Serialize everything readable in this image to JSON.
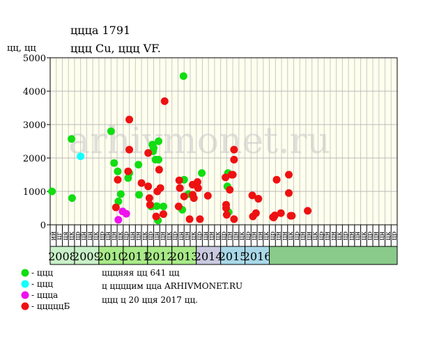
{
  "title": "ццца 1791",
  "subtitle": "ццц Cu, ццц VF.",
  "y_unit": "цц, цц",
  "watermark": "arhivmonet.ru",
  "note_lines": [
    "цццняя цц 641 цц",
    "ц ццццим цца ARHIVMONET.RU",
    "ццц ц 20 цця 2017 цц."
  ],
  "legend": [
    {
      "label": "- ццц",
      "color": "#11dd11"
    },
    {
      "label": "- ццц",
      "color": "#11ffff"
    },
    {
      "label": "- ццца",
      "color": "#ee11ee"
    },
    {
      "label": "- цццццБ",
      "color": "#ee1111"
    }
  ],
  "years": [
    {
      "label": "2008",
      "color": "#c8f0c8"
    },
    {
      "label": "2009",
      "color": "#c8f0c8"
    },
    {
      "label": "2010",
      "color": "#a8ea88"
    },
    {
      "label": "2011",
      "color": "#a8ea88"
    },
    {
      "label": "2012",
      "color": "#a8ea88"
    },
    {
      "label": "2013",
      "color": "#a8ea88"
    },
    {
      "label": "2014",
      "color": "#c8c8e0"
    },
    {
      "label": "2015",
      "color": "#a8d8e8"
    },
    {
      "label": "2016",
      "color": "#a8d8e8"
    }
  ],
  "month_labels": [
    "ий",
    "цг",
    "ця",
    "цк",
    "цр",
    "цн",
    "цн",
    "цк",
    "цр",
    "цн",
    "цн",
    "цк",
    "цр",
    "цн",
    "цн",
    "цк",
    "цр",
    "цн",
    "цн",
    "цк",
    "цр",
    "цн",
    "цн",
    "цк",
    "цр",
    "цн",
    "цн",
    "цк",
    "цр",
    "цн",
    "цн",
    "цк",
    "цр",
    "цн",
    "цн",
    "цк",
    "цр",
    "цн",
    "цн",
    "цк",
    "цр",
    "цн",
    "цн",
    "цк",
    "цр",
    "цн",
    "цн",
    "цк",
    "цр",
    "цн",
    "цн",
    "цк",
    "цр",
    "цн",
    "цн",
    "цк",
    "цр"
  ],
  "chart_data": {
    "type": "scatter",
    "title": "ццца 1791",
    "subtitle": "ццц Cu, ццц VF.",
    "ylabel": "цц, цц",
    "ylim": [
      0,
      5000
    ],
    "yticks": [
      0,
      1000,
      2000,
      3000,
      4000,
      5000
    ],
    "x_unit": "quarter",
    "x_start": "2008-Q1",
    "grid": true,
    "series": [
      {
        "name": "- ццц",
        "color": "#11dd11",
        "points": [
          [
            0.3,
            1000
          ],
          [
            3.5,
            2570
          ],
          [
            3.6,
            800
          ],
          [
            10.0,
            2800
          ],
          [
            10.5,
            1850
          ],
          [
            11.1,
            1600
          ],
          [
            11.2,
            700
          ],
          [
            11.6,
            920
          ],
          [
            12.8,
            1400
          ],
          [
            13.0,
            1550
          ],
          [
            14.5,
            1800
          ],
          [
            14.6,
            900
          ],
          [
            16.6,
            550
          ],
          [
            16.8,
            2400
          ],
          [
            16.9,
            2200
          ],
          [
            17.0,
            2300
          ],
          [
            17.3,
            1950
          ],
          [
            17.5,
            560
          ],
          [
            17.8,
            2500
          ],
          [
            17.8,
            1950
          ],
          [
            17.7,
            130
          ],
          [
            18.6,
            550
          ],
          [
            21.7,
            450
          ],
          [
            21.9,
            4450
          ],
          [
            22.0,
            1350
          ],
          [
            22.7,
            920
          ],
          [
            24.9,
            1550
          ],
          [
            29.2,
            1550
          ],
          [
            29.1,
            1150
          ],
          [
            29.3,
            380
          ]
        ]
      },
      {
        "name": "- ццц",
        "color": "#11ffff",
        "points": [
          [
            5.0,
            2050
          ]
        ]
      },
      {
        "name": "- ццца",
        "color": "#ee11ee",
        "points": [
          [
            11.2,
            150
          ],
          [
            11.9,
            400
          ],
          [
            12.5,
            330
          ]
        ]
      },
      {
        "name": "- цццццБ",
        "color": "#ee1111",
        "points": [
          [
            10.8,
            520
          ],
          [
            11.1,
            1350
          ],
          [
            12.8,
            1600
          ],
          [
            13.0,
            2250
          ],
          [
            13.0,
            3150
          ],
          [
            15.0,
            1250
          ],
          [
            16.1,
            2150
          ],
          [
            16.1,
            1150
          ],
          [
            16.3,
            800
          ],
          [
            16.4,
            600
          ],
          [
            17.4,
            250
          ],
          [
            17.6,
            1000
          ],
          [
            17.9,
            1650
          ],
          [
            18.1,
            1100
          ],
          [
            18.6,
            320
          ],
          [
            18.8,
            3700
          ],
          [
            21.2,
            1330
          ],
          [
            21.3,
            1100
          ],
          [
            21.1,
            550
          ],
          [
            22.0,
            850
          ],
          [
            22.9,
            170
          ],
          [
            23.4,
            1200
          ],
          [
            23.4,
            900
          ],
          [
            23.6,
            800
          ],
          [
            24.2,
            1280
          ],
          [
            24.3,
            1100
          ],
          [
            24.6,
            170
          ],
          [
            25.9,
            870
          ],
          [
            28.8,
            1420
          ],
          [
            28.9,
            500
          ],
          [
            28.9,
            600
          ],
          [
            29.0,
            300
          ],
          [
            29.5,
            1050
          ],
          [
            29.8,
            1500
          ],
          [
            30.0,
            1500
          ],
          [
            30.2,
            2250
          ],
          [
            30.2,
            1950
          ],
          [
            30.2,
            170
          ],
          [
            33.2,
            880
          ],
          [
            33.3,
            250
          ],
          [
            33.8,
            350
          ],
          [
            34.2,
            780
          ],
          [
            36.6,
            230
          ],
          [
            36.7,
            220
          ],
          [
            36.9,
            280
          ],
          [
            37.2,
            1350
          ],
          [
            37.9,
            350
          ],
          [
            39.2,
            1500
          ],
          [
            39.2,
            950
          ],
          [
            39.5,
            270
          ],
          [
            39.7,
            270
          ],
          [
            42.3,
            420
          ]
        ]
      }
    ]
  }
}
